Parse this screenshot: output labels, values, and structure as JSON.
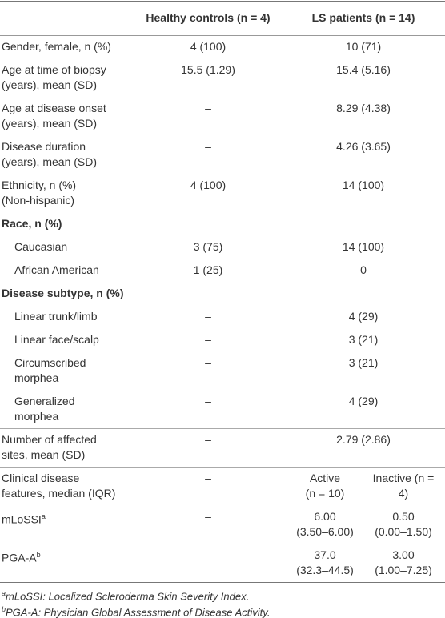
{
  "header": {
    "healthy": "Healthy controls (n = 4)",
    "ls": "LS patients (n = 14)"
  },
  "rows": [
    {
      "lines": [
        "Gender, female, n (%)"
      ],
      "healthy": [
        "4 (100)"
      ],
      "ls": [
        "10 (71)"
      ]
    },
    {
      "lines": [
        "Age at time of biopsy",
        "(years), mean (SD)"
      ],
      "healthy": [
        "15.5 (1.29)"
      ],
      "ls": [
        "15.4 (5.16)"
      ]
    },
    {
      "lines": [
        "Age at disease onset",
        "(years), mean (SD)"
      ],
      "healthy": [
        "–"
      ],
      "ls": [
        "8.29 (4.38)"
      ]
    },
    {
      "lines": [
        "Disease duration",
        "(years), mean (SD)"
      ],
      "healthy": [
        "–"
      ],
      "ls": [
        "4.26 (3.65)"
      ]
    },
    {
      "lines": [
        "Ethnicity, n (%)",
        "(Non-hispanic)"
      ],
      "healthy": [
        "4 (100)"
      ],
      "ls": [
        "14 (100)"
      ]
    },
    {
      "lines": [
        "Race, n (%)"
      ],
      "section": true
    },
    {
      "lines": [
        "Caucasian"
      ],
      "indent": true,
      "healthy": [
        "3 (75)"
      ],
      "ls": [
        "14 (100)"
      ]
    },
    {
      "lines": [
        "African American"
      ],
      "indent": true,
      "healthy": [
        "1 (25)"
      ],
      "ls": [
        "0"
      ]
    },
    {
      "lines": [
        "Disease subtype, n (%)"
      ],
      "section": true
    },
    {
      "lines": [
        "Linear trunk/limb"
      ],
      "indent": true,
      "healthy": [
        "–"
      ],
      "ls": [
        "4 (29)"
      ]
    },
    {
      "lines": [
        "Linear face/scalp"
      ],
      "indent": true,
      "healthy": [
        "–"
      ],
      "ls": [
        "3 (21)"
      ]
    },
    {
      "lines": [
        "Circumscribed",
        "morphea"
      ],
      "indent": true,
      "healthy": [
        "–"
      ],
      "ls": [
        "3 (21)"
      ]
    },
    {
      "lines": [
        "Generalized",
        "morphea"
      ],
      "indent": true,
      "healthy": [
        "–"
      ],
      "ls": [
        "4 (29)"
      ]
    },
    {
      "lines": [
        "Number of affected",
        "sites, mean (SD)"
      ],
      "healthy": [
        "–"
      ],
      "ls": [
        "2.79 (2.86)"
      ],
      "rule": true
    },
    {
      "lines": [
        "Clinical disease",
        "features, median (IQR)"
      ],
      "healthy": [
        "–"
      ],
      "active": [
        "Active",
        "(n = 10)"
      ],
      "inactive": [
        "Inactive (n =",
        "4)"
      ],
      "rule": true
    },
    {
      "lines": [
        "mLoSSI"
      ],
      "sup": "a",
      "healthy": [
        "–"
      ],
      "active": [
        "6.00",
        "(3.50–6.00)"
      ],
      "inactive": [
        "0.50",
        "(0.00–1.50)"
      ]
    },
    {
      "lines": [
        "PGA-A"
      ],
      "sup": "b",
      "healthy": [
        "–"
      ],
      "active": [
        "37.0",
        "(32.3–44.5)"
      ],
      "inactive": [
        "3.00",
        "(1.00–7.25)"
      ]
    }
  ],
  "footnotes": [
    {
      "mark": "a",
      "text": "mLoSSI: Localized Scleroderma Skin Severity Index."
    },
    {
      "mark": "b",
      "text": "PGA-A: Physician Global Assessment of Disease Activity."
    }
  ]
}
